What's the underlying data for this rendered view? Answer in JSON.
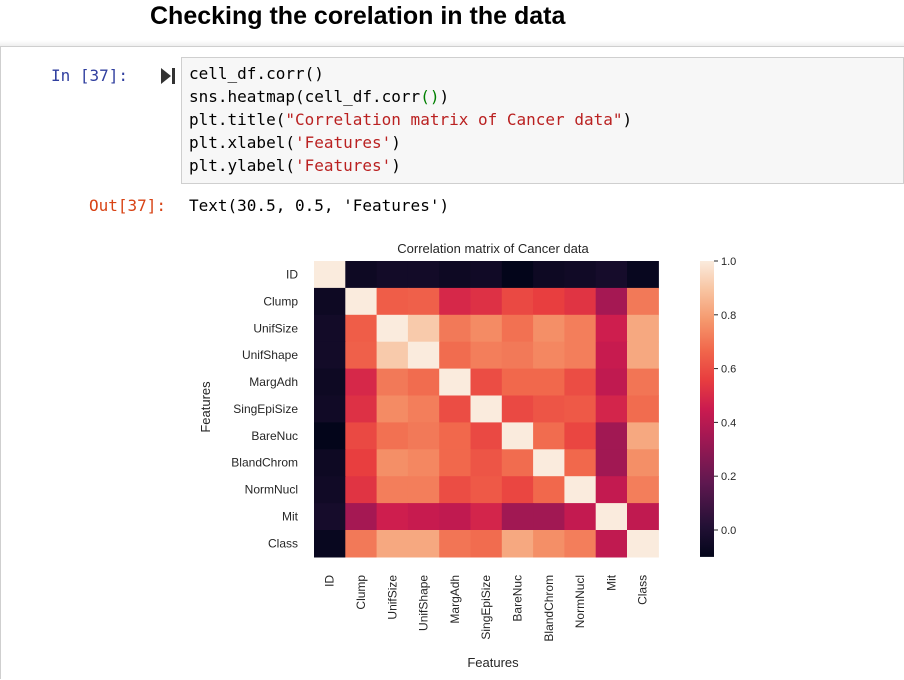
{
  "heading": "Checking the corelation in the data",
  "cell": {
    "in_prompt": "In [37]:",
    "out_prompt": "Out[37]:",
    "code_lines": [
      [
        {
          "t": "cell_df.corr()",
          "c": ""
        }
      ],
      [
        {
          "t": "sns.heatmap(cell_df.corr",
          "c": ""
        },
        {
          "t": "()",
          "c": "paren"
        },
        {
          "t": ")",
          "c": ""
        }
      ],
      [
        {
          "t": "plt.title(",
          "c": ""
        },
        {
          "t": "\"Correlation matrix of Cancer data\"",
          "c": "str"
        },
        {
          "t": ")",
          "c": ""
        }
      ],
      [
        {
          "t": "plt.xlabel(",
          "c": ""
        },
        {
          "t": "'Features'",
          "c": "str"
        },
        {
          "t": ")",
          "c": ""
        }
      ],
      [
        {
          "t": "plt.ylabel(",
          "c": ""
        },
        {
          "t": "'Features'",
          "c": "str"
        },
        {
          "t": ")",
          "c": ""
        }
      ]
    ],
    "output_text": "Text(30.5, 0.5, 'Features')"
  },
  "chart_data": {
    "type": "heatmap",
    "title": "Correlation matrix of Cancer data",
    "xlabel": "Features",
    "ylabel": "Features",
    "labels": [
      "ID",
      "Clump",
      "UnifSize",
      "UnifShape",
      "MargAdh",
      "SingEpiSize",
      "BareNuc",
      "BlandChrom",
      "NormNucl",
      "Mit",
      "Class"
    ],
    "matrix": [
      [
        1.0,
        -0.06,
        -0.04,
        -0.04,
        -0.06,
        -0.05,
        -0.1,
        -0.06,
        -0.05,
        -0.03,
        -0.08
      ],
      [
        -0.06,
        1.0,
        0.64,
        0.65,
        0.49,
        0.52,
        0.59,
        0.56,
        0.53,
        0.35,
        0.71
      ],
      [
        -0.04,
        0.64,
        1.0,
        0.91,
        0.71,
        0.75,
        0.69,
        0.76,
        0.72,
        0.46,
        0.82
      ],
      [
        -0.04,
        0.65,
        0.91,
        1.0,
        0.68,
        0.72,
        0.71,
        0.74,
        0.72,
        0.44,
        0.82
      ],
      [
        -0.06,
        0.49,
        0.71,
        0.68,
        1.0,
        0.6,
        0.67,
        0.67,
        0.6,
        0.42,
        0.7
      ],
      [
        -0.05,
        0.52,
        0.75,
        0.72,
        0.6,
        1.0,
        0.59,
        0.62,
        0.63,
        0.48,
        0.68
      ],
      [
        -0.1,
        0.59,
        0.69,
        0.71,
        0.67,
        0.59,
        1.0,
        0.68,
        0.58,
        0.34,
        0.82
      ],
      [
        -0.06,
        0.56,
        0.76,
        0.74,
        0.67,
        0.62,
        0.68,
        1.0,
        0.67,
        0.34,
        0.76
      ],
      [
        -0.05,
        0.53,
        0.72,
        0.72,
        0.6,
        0.63,
        0.58,
        0.67,
        1.0,
        0.43,
        0.72
      ],
      [
        -0.03,
        0.35,
        0.46,
        0.44,
        0.42,
        0.48,
        0.34,
        0.34,
        0.43,
        1.0,
        0.42
      ],
      [
        -0.08,
        0.71,
        0.82,
        0.82,
        0.7,
        0.68,
        0.82,
        0.76,
        0.72,
        0.42,
        1.0
      ]
    ],
    "colorbar": {
      "vmin": -0.1,
      "vmax": 1.0,
      "ticks": [
        1.0,
        0.8,
        0.6,
        0.4,
        0.2,
        0.0
      ]
    },
    "colormap": "rocket",
    "grid": false
  }
}
